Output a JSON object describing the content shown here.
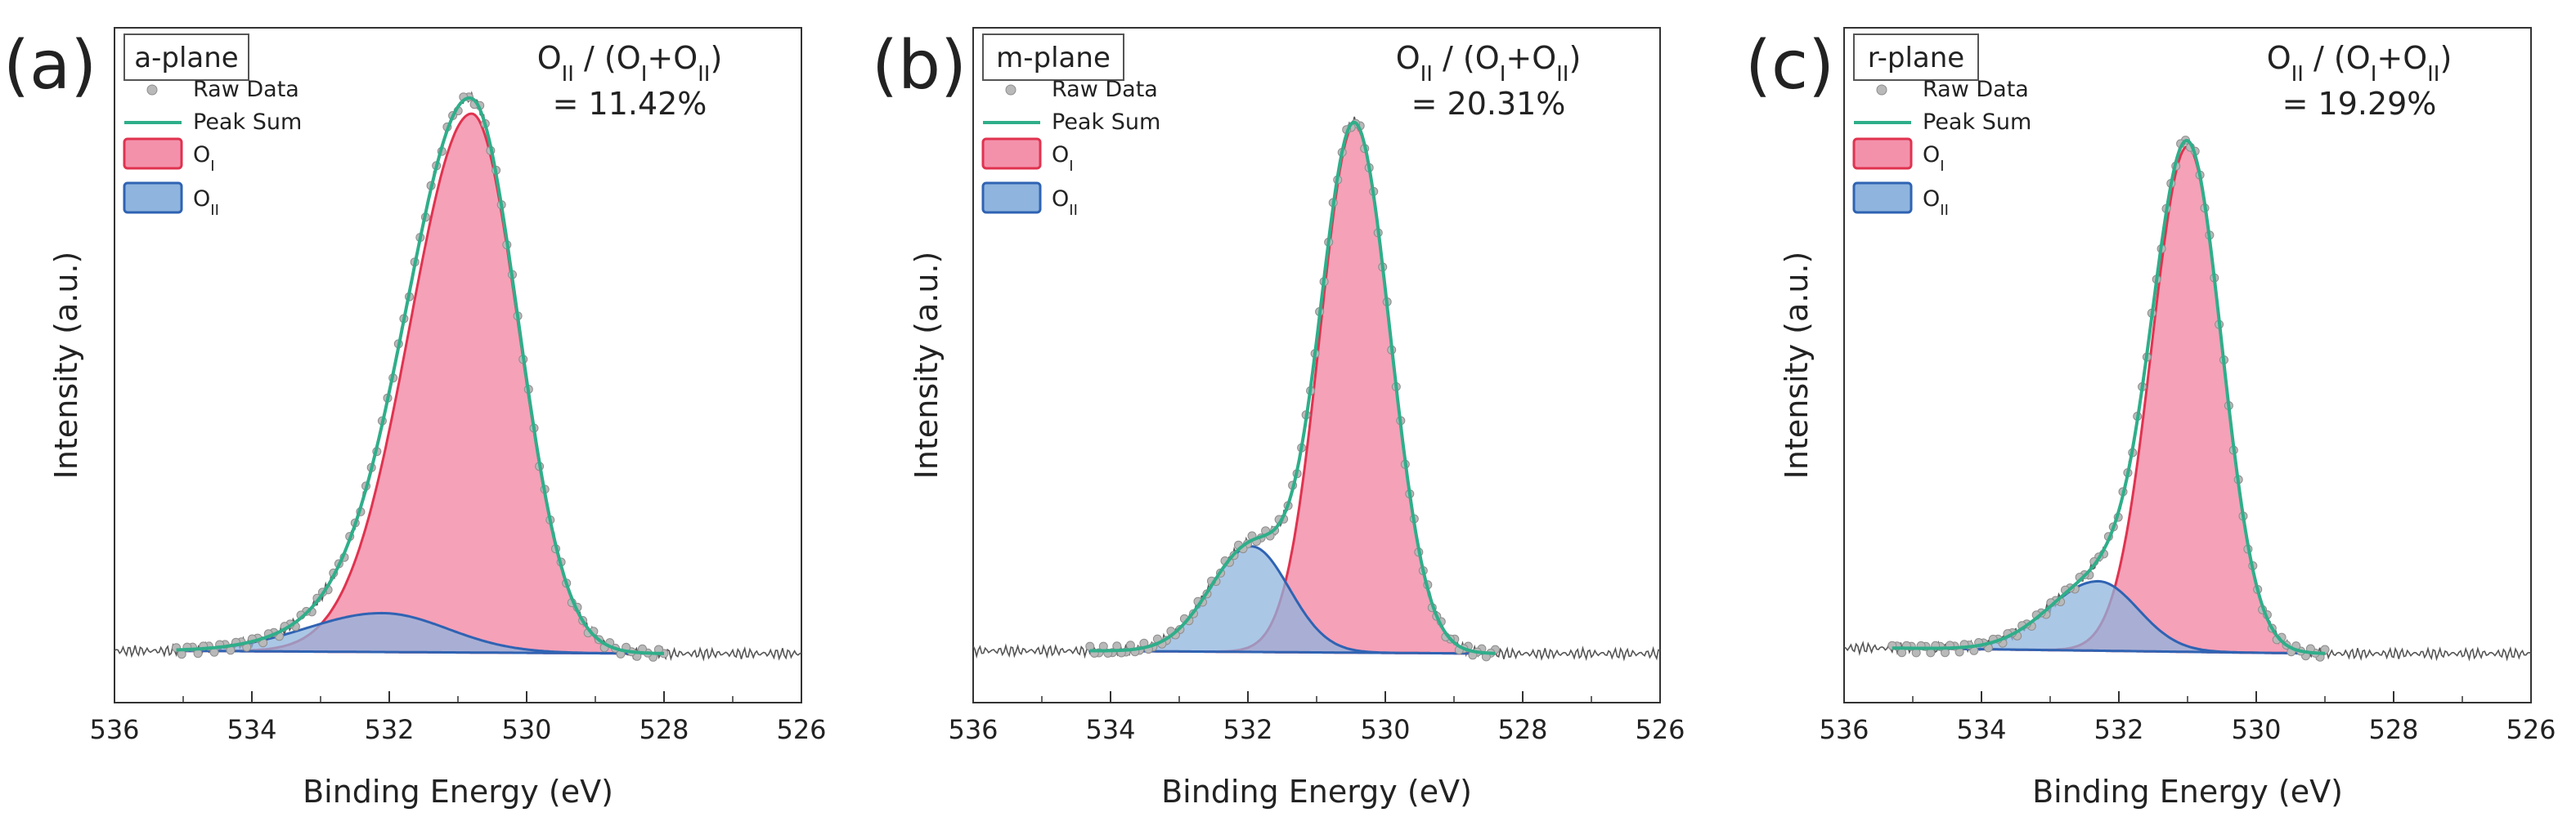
{
  "figure": {
    "domain": "Chart"
  },
  "colors": {
    "raw": "#b9b9b9",
    "raw_edge": "#8d8d8d",
    "sum": "#2fae8a",
    "oi_fill": "#f391ab",
    "oi_line": "#e0334f",
    "oii_fill": "#8fb4de",
    "oii_line": "#2f63b3",
    "overlap": "#9b7aa8",
    "baseline": "#555555"
  },
  "chart_data": [
    {
      "type": "line",
      "panel_tag": "(a)",
      "sample": "a-plane",
      "ratio_label": "O_II / (O_I+O_II)",
      "ratio_value": "= 11.42%",
      "xlabel": "Binding Energy (eV)",
      "ylabel": "Intensity (a.u.)",
      "xlim": [
        536,
        526
      ],
      "xticks": [
        "536",
        "534",
        "532",
        "530",
        "528",
        "526"
      ],
      "fit_range": [
        528,
        535.1
      ],
      "raw_range": [
        526,
        536
      ],
      "legend": [
        {
          "kind": "marker",
          "label": "Raw Data"
        },
        {
          "kind": "line",
          "label": "Peak Sum"
        },
        {
          "kind": "box",
          "label": "O_I"
        },
        {
          "kind": "box",
          "label": "O_II"
        }
      ],
      "series": [
        {
          "name": "O_I",
          "center": 530.8,
          "height": 0.97,
          "sigma_left": 0.9,
          "sigma_right": 0.68
        },
        {
          "name": "O_II",
          "center": 532.1,
          "height": 0.07,
          "sigma_left": 1.1,
          "sigma_right": 0.95
        }
      ],
      "baseline": {
        "left": 0.005,
        "right": 0.0
      }
    },
    {
      "type": "line",
      "panel_tag": "(b)",
      "sample": "m-plane",
      "ratio_label": "O_II / (O_I+O_II)",
      "ratio_value": "= 20.31%",
      "xlabel": "Binding Energy (eV)",
      "ylabel": "Intensity (a.u.)",
      "xlim": [
        536,
        526
      ],
      "xticks": [
        "536",
        "534",
        "532",
        "530",
        "528",
        "526"
      ],
      "fit_range": [
        528.4,
        534.3
      ],
      "raw_range": [
        526,
        536
      ],
      "legend": [
        {
          "kind": "marker",
          "label": "Raw Data"
        },
        {
          "kind": "line",
          "label": "Peak Sum"
        },
        {
          "kind": "box",
          "label": "O_I"
        },
        {
          "kind": "box",
          "label": "O_II"
        }
      ],
      "series": [
        {
          "name": "O_I",
          "center": 530.45,
          "height": 0.95,
          "sigma_left": 0.5,
          "sigma_right": 0.52
        },
        {
          "name": "O_II",
          "center": 531.95,
          "height": 0.19,
          "sigma_left": 0.6,
          "sigma_right": 0.55
        }
      ],
      "baseline": {
        "left": 0.005,
        "right": 0.0
      }
    },
    {
      "type": "line",
      "panel_tag": "(c)",
      "sample": "r-plane",
      "ratio_label": "O_II / (O_I+O_II)",
      "ratio_value": "= 19.29%",
      "xlabel": "Binding Energy (eV)",
      "ylabel": "Intensity (a.u.)",
      "xlim": [
        536,
        526
      ],
      "xticks": [
        "536",
        "534",
        "532",
        "530",
        "528",
        "526"
      ],
      "fit_range": [
        529,
        535.3
      ],
      "raw_range": [
        526,
        536
      ],
      "legend": [
        {
          "kind": "marker",
          "label": "Raw Data"
        },
        {
          "kind": "line",
          "label": "Peak Sum"
        },
        {
          "kind": "box",
          "label": "O_I"
        },
        {
          "kind": "box",
          "label": "O_II"
        }
      ],
      "series": [
        {
          "name": "O_I",
          "center": 531.0,
          "height": 0.91,
          "sigma_left": 0.52,
          "sigma_right": 0.5
        },
        {
          "name": "O_II",
          "center": 532.3,
          "height": 0.125,
          "sigma_left": 0.72,
          "sigma_right": 0.58
        }
      ],
      "baseline": {
        "left": 0.01,
        "right": 0.0
      }
    }
  ]
}
